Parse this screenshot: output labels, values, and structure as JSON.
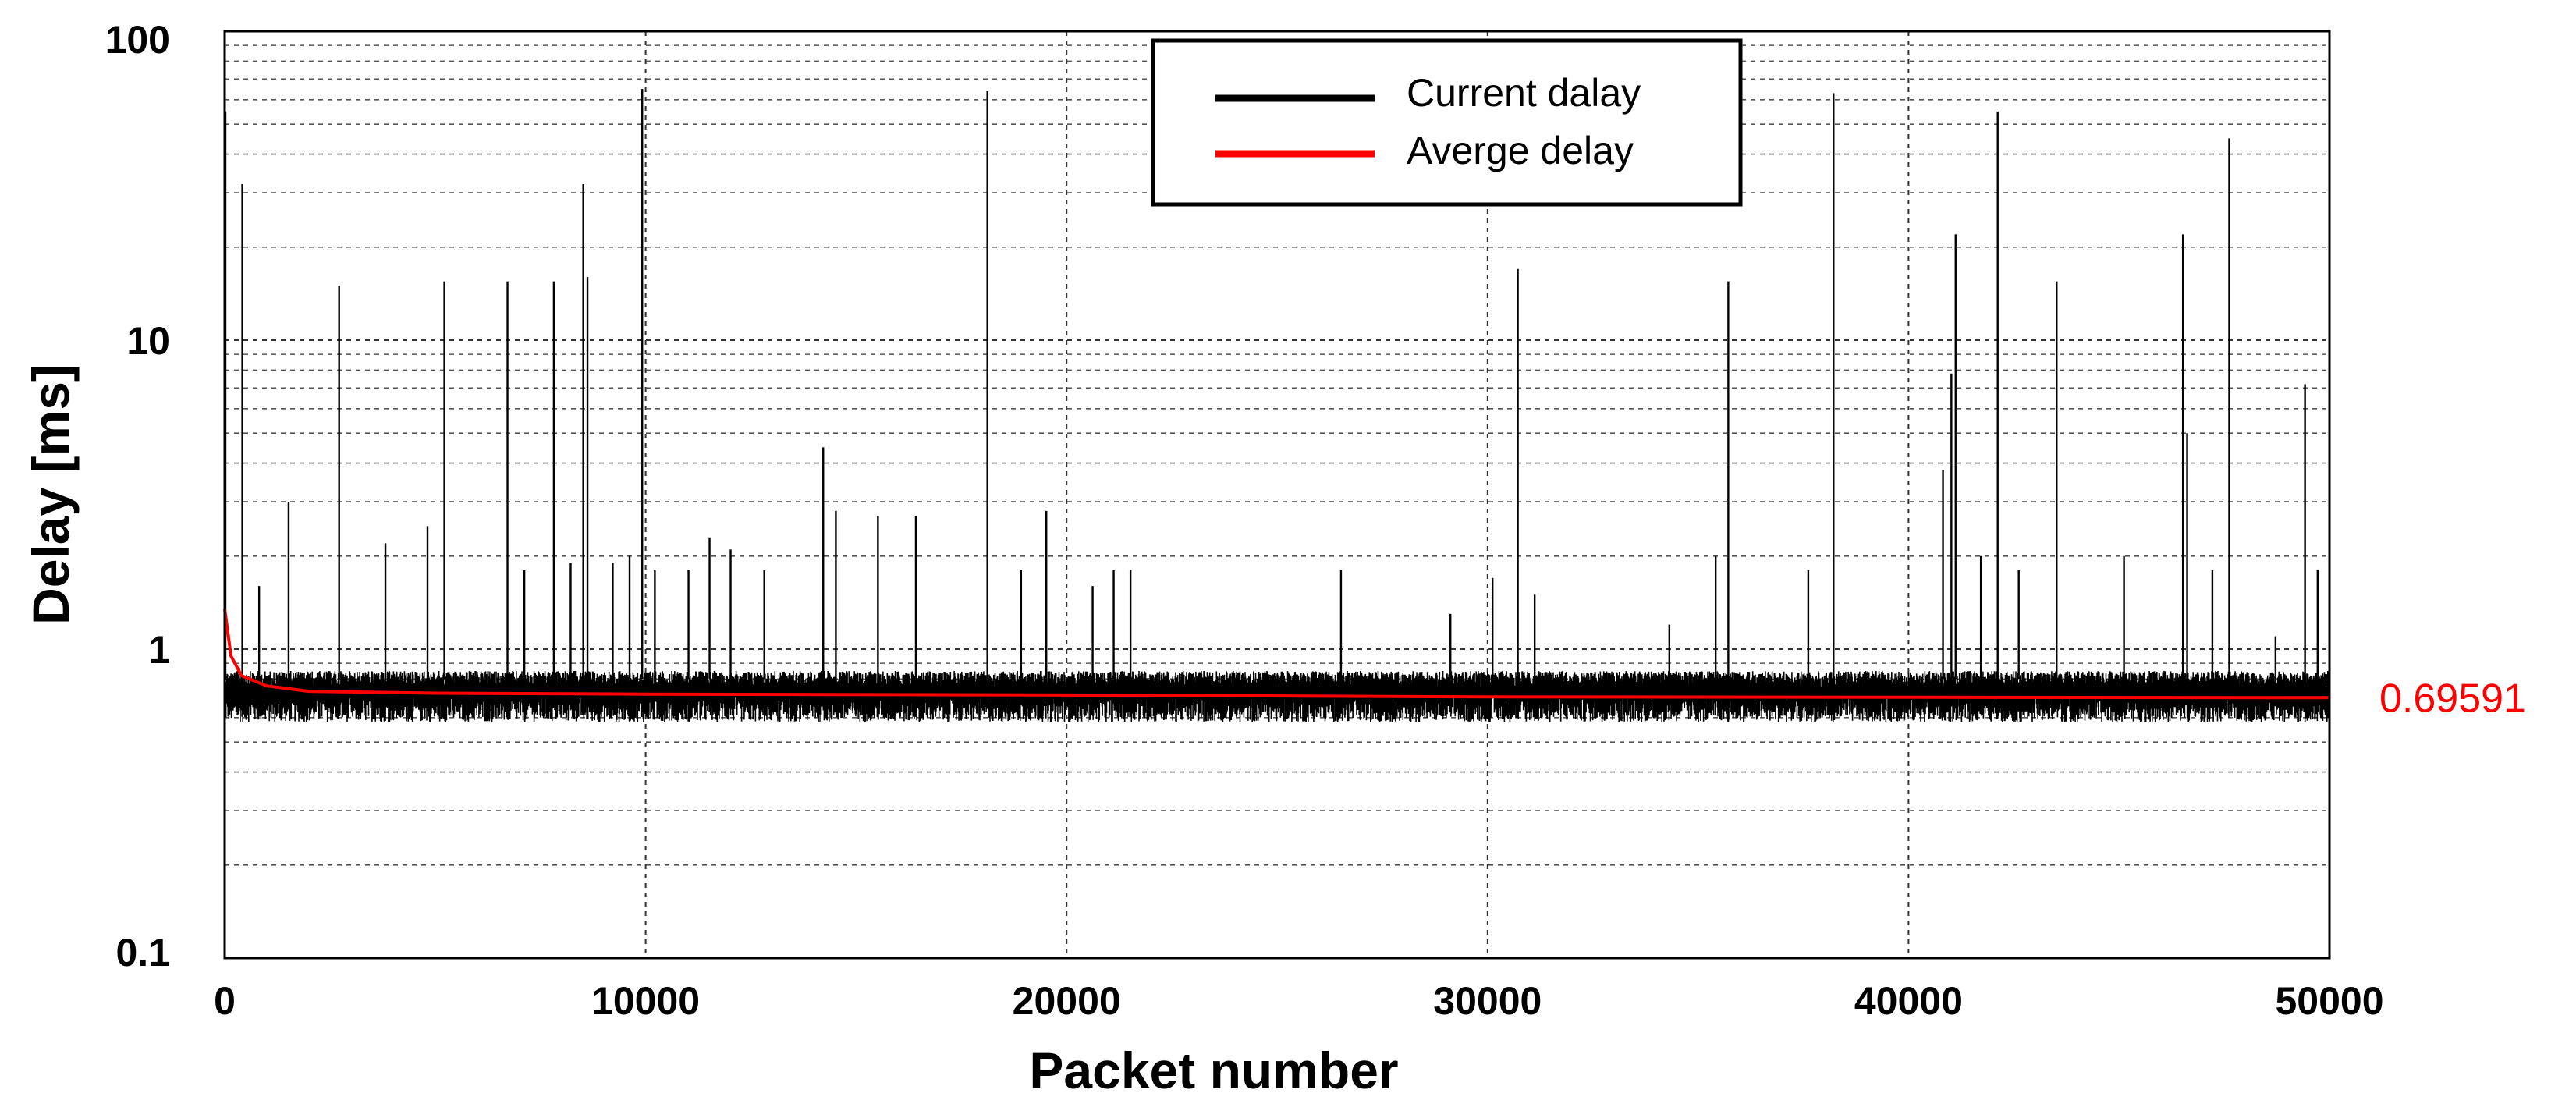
{
  "chart_data": {
    "type": "line",
    "title": "",
    "xlabel": "Packet number",
    "ylabel": "Delay  [ms]",
    "xlim": [
      0,
      50000
    ],
    "ylim": [
      0.1,
      100
    ],
    "yscale": "log",
    "grid": true,
    "legend_position": "top-center",
    "x_ticks": [
      "0",
      "10000",
      "20000",
      "30000",
      "40000",
      "50000"
    ],
    "x_tick_values": [
      0,
      10000,
      20000,
      30000,
      40000,
      50000
    ],
    "y_ticks": [
      "0.1",
      "1",
      "10",
      "100"
    ],
    "y_tick_values": [
      0.1,
      1,
      10,
      100
    ],
    "baseline": {
      "low": 0.58,
      "high": 0.85
    },
    "series": [
      {
        "name": "Current dalay",
        "color": "#000000",
        "spikes": [
          {
            "x": 0,
            "y": 55
          },
          {
            "x": 400,
            "y": 32
          },
          {
            "x": 800,
            "y": 1.6
          },
          {
            "x": 1500,
            "y": 3.0
          },
          {
            "x": 2700,
            "y": 15
          },
          {
            "x": 3800,
            "y": 2.2
          },
          {
            "x": 4800,
            "y": 2.5
          },
          {
            "x": 5200,
            "y": 15.5
          },
          {
            "x": 6700,
            "y": 15.5
          },
          {
            "x": 7100,
            "y": 1.8
          },
          {
            "x": 7800,
            "y": 15.5
          },
          {
            "x": 8200,
            "y": 1.9
          },
          {
            "x": 8500,
            "y": 32
          },
          {
            "x": 8600,
            "y": 16
          },
          {
            "x": 9200,
            "y": 1.9
          },
          {
            "x": 9600,
            "y": 2.0
          },
          {
            "x": 9900,
            "y": 65
          },
          {
            "x": 10200,
            "y": 1.8
          },
          {
            "x": 11000,
            "y": 1.8
          },
          {
            "x": 11500,
            "y": 2.3
          },
          {
            "x": 12000,
            "y": 2.1
          },
          {
            "x": 12800,
            "y": 1.8
          },
          {
            "x": 14200,
            "y": 4.5
          },
          {
            "x": 14500,
            "y": 2.8
          },
          {
            "x": 15500,
            "y": 2.7
          },
          {
            "x": 16400,
            "y": 2.7
          },
          {
            "x": 18100,
            "y": 64
          },
          {
            "x": 18900,
            "y": 1.8
          },
          {
            "x": 19500,
            "y": 2.8
          },
          {
            "x": 20600,
            "y": 1.6
          },
          {
            "x": 21100,
            "y": 1.8
          },
          {
            "x": 21500,
            "y": 1.8
          },
          {
            "x": 26500,
            "y": 1.8
          },
          {
            "x": 29100,
            "y": 1.3
          },
          {
            "x": 30100,
            "y": 1.7
          },
          {
            "x": 30700,
            "y": 17
          },
          {
            "x": 31100,
            "y": 1.5
          },
          {
            "x": 34300,
            "y": 1.2
          },
          {
            "x": 35400,
            "y": 2.0
          },
          {
            "x": 35700,
            "y": 15.5
          },
          {
            "x": 37600,
            "y": 1.8
          },
          {
            "x": 38200,
            "y": 63
          },
          {
            "x": 40800,
            "y": 3.8
          },
          {
            "x": 41000,
            "y": 7.8
          },
          {
            "x": 41100,
            "y": 22
          },
          {
            "x": 41700,
            "y": 2.0
          },
          {
            "x": 42100,
            "y": 55
          },
          {
            "x": 42600,
            "y": 1.8
          },
          {
            "x": 43500,
            "y": 15.5
          },
          {
            "x": 45100,
            "y": 2.0
          },
          {
            "x": 46500,
            "y": 22
          },
          {
            "x": 46600,
            "y": 5.0
          },
          {
            "x": 47200,
            "y": 1.8
          },
          {
            "x": 47600,
            "y": 45
          },
          {
            "x": 48700,
            "y": 1.1
          },
          {
            "x": 49400,
            "y": 7.2
          },
          {
            "x": 49700,
            "y": 1.8
          }
        ]
      },
      {
        "name": "Averge delay",
        "color": "#ff0000",
        "points": [
          {
            "x": 0,
            "y": 1.35
          },
          {
            "x": 150,
            "y": 0.95
          },
          {
            "x": 400,
            "y": 0.82
          },
          {
            "x": 1000,
            "y": 0.76
          },
          {
            "x": 2000,
            "y": 0.73
          },
          {
            "x": 5000,
            "y": 0.72
          },
          {
            "x": 10000,
            "y": 0.715
          },
          {
            "x": 20000,
            "y": 0.71
          },
          {
            "x": 30000,
            "y": 0.7
          },
          {
            "x": 40000,
            "y": 0.698
          },
          {
            "x": 50000,
            "y": 0.69591
          }
        ]
      }
    ],
    "annotations": [
      {
        "text": "0.69591",
        "x": 50000,
        "y": 0.69591,
        "color": "#ff0000"
      }
    ]
  }
}
